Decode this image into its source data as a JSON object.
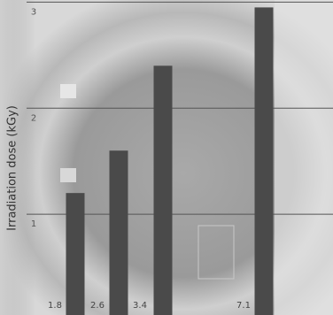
{
  "chart_data": {
    "type": "bar",
    "ylabel": "Irradiation dose (kGy)",
    "categories": [
      "1.8",
      "2.6",
      "3.4",
      "7.1"
    ],
    "values": [
      1.2,
      1.6,
      2.4,
      2.95
    ],
    "color": "#4a4a4a",
    "ylim": [
      0.05,
      3.02
    ],
    "yticks": [
      1,
      2,
      3
    ],
    "grid": true
  }
}
